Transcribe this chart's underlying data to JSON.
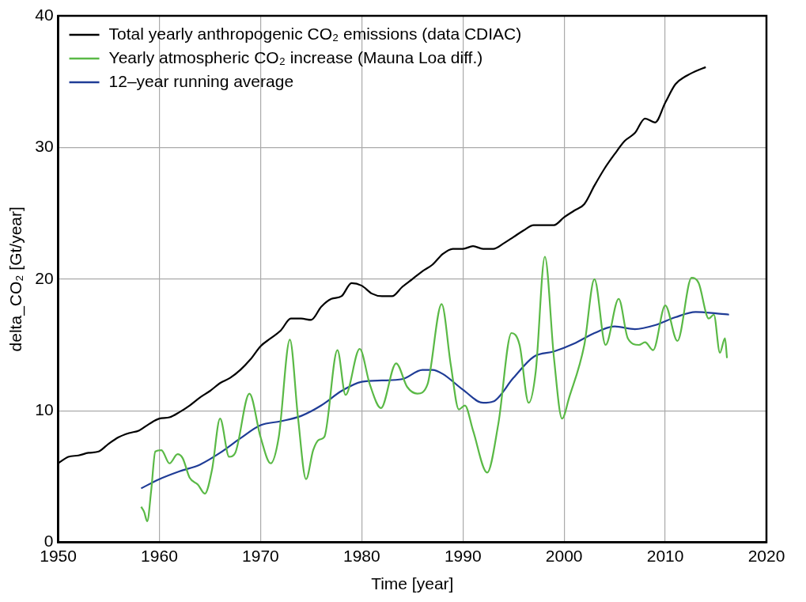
{
  "chart_data": {
    "type": "line",
    "xlabel": "Time [year]",
    "ylabel": "delta_CO₂ [Gt/year]",
    "xlim": [
      1950,
      2020
    ],
    "xticks": [
      1950,
      1960,
      1970,
      1980,
      1990,
      2000,
      2010,
      2020
    ],
    "ylim": [
      0,
      40
    ],
    "yticks": [
      0,
      10,
      20,
      30,
      40
    ],
    "grid": true,
    "legend": "top left",
    "marker": "none",
    "line_style": "solid",
    "series": [
      {
        "name": "Total yearly anthropogenic CO₂ emissions (data CDIAC)",
        "color": "#000000",
        "x": [
          1950,
          1951,
          1952,
          1953,
          1954,
          1955,
          1956,
          1957,
          1958,
          1959,
          1960,
          1961,
          1962,
          1963,
          1964,
          1965,
          1966,
          1967,
          1968,
          1969,
          1970,
          1971,
          1972,
          1973,
          1974,
          1975,
          1976,
          1977,
          1978,
          1979,
          1980,
          1981,
          1982,
          1983,
          1984,
          1985,
          1986,
          1987,
          1988,
          1989,
          1990,
          1991,
          1992,
          1993,
          1994,
          1995,
          1996,
          1997,
          1998,
          1999,
          2000,
          2001,
          2002,
          2003,
          2004,
          2005,
          2006,
          2007,
          2008,
          2009,
          2010,
          2011,
          2012,
          2013,
          2014
        ],
        "values": [
          6.0,
          6.5,
          6.6,
          6.8,
          6.9,
          7.5,
          8.0,
          8.3,
          8.5,
          9.0,
          9.4,
          9.5,
          9.9,
          10.4,
          11.0,
          11.5,
          12.1,
          12.5,
          13.1,
          13.9,
          14.9,
          15.5,
          16.1,
          17.0,
          17.0,
          16.9,
          17.9,
          18.5,
          18.7,
          19.7,
          19.5,
          18.9,
          18.7,
          18.7,
          19.4,
          20.0,
          20.6,
          21.1,
          21.9,
          22.3,
          22.3,
          22.5,
          22.3,
          22.3,
          22.7,
          23.2,
          23.7,
          24.1,
          24.1,
          24.1,
          24.7,
          25.2,
          25.7,
          27.1,
          28.4,
          29.5,
          30.5,
          31.1,
          32.2,
          31.9,
          33.4,
          34.8,
          35.4,
          35.8,
          36.1
        ]
      },
      {
        "name": "Yearly atmospheric CO₂ increase (Mauna Loa diff.)",
        "color": "#5ab946",
        "x": [
          1958.2,
          1958.5,
          1958.8,
          1959.2,
          1959.6,
          1960.2,
          1961.0,
          1961.8,
          1962.3,
          1963.0,
          1963.8,
          1964.5,
          1965.2,
          1966.0,
          1966.9,
          1967.5,
          1968.9,
          1970.0,
          1971.0,
          1971.8,
          1972.9,
          1973.7,
          1974.5,
          1975.2,
          1975.8,
          1976.3,
          1977.6,
          1978.4,
          1979.8,
          1980.8,
          1981.9,
          1983.4,
          1984.5,
          1985.5,
          1986.5,
          1987.9,
          1988.8,
          1989.6,
          1990.2,
          1991.0,
          1992.4,
          1993.5,
          1994.8,
          1995.6,
          1996.5,
          1997.2,
          1998.1,
          1999.0,
          1999.8,
          2000.5,
          2002.0,
          2003.0,
          2004.1,
          2005.4,
          2006.3,
          2007.4,
          2008.0,
          2008.8,
          2010.0,
          2011.2,
          2012.6,
          2013.3,
          2014.3,
          2014.8,
          2015.4,
          2015.9,
          2016.1
        ],
        "values": [
          2.7,
          2.3,
          1.6,
          4.0,
          6.9,
          7.0,
          6.0,
          6.7,
          6.4,
          4.9,
          4.4,
          3.7,
          5.5,
          9.4,
          6.5,
          6.8,
          11.3,
          8.0,
          6.0,
          8.0,
          15.4,
          9.5,
          4.8,
          7.0,
          7.8,
          8.0,
          14.6,
          11.2,
          14.7,
          12.0,
          10.2,
          13.6,
          11.8,
          11.3,
          12.0,
          18.1,
          13.5,
          10.1,
          10.4,
          8.5,
          5.3,
          9.0,
          15.9,
          15.0,
          10.6,
          13.0,
          21.7,
          14.0,
          9.4,
          11.0,
          15.0,
          20.0,
          15.0,
          18.5,
          15.5,
          15.0,
          15.2,
          14.6,
          18.0,
          15.3,
          20.1,
          19.7,
          17.0,
          17.3,
          14.4,
          15.5,
          14.0
        ]
      },
      {
        "name": "12–year running average",
        "color": "#1f3c96",
        "x": [
          1958.2,
          1960,
          1962,
          1964,
          1966,
          1968,
          1970,
          1972,
          1974,
          1976,
          1978,
          1980,
          1982,
          1984,
          1986,
          1987,
          1988,
          1990,
          1992,
          1993,
          1995,
          1997,
          1999,
          2001,
          2003,
          2005,
          2007,
          2009,
          2011,
          2013,
          2015,
          2016.3
        ],
        "values": [
          4.1,
          4.8,
          5.4,
          5.9,
          6.8,
          7.9,
          8.9,
          9.2,
          9.6,
          10.4,
          11.5,
          12.2,
          12.3,
          12.4,
          13.1,
          13.1,
          12.8,
          11.6,
          10.6,
          10.7,
          12.5,
          14.1,
          14.5,
          15.1,
          15.9,
          16.4,
          16.2,
          16.5,
          17.1,
          17.5,
          17.4,
          17.3
        ]
      }
    ]
  }
}
